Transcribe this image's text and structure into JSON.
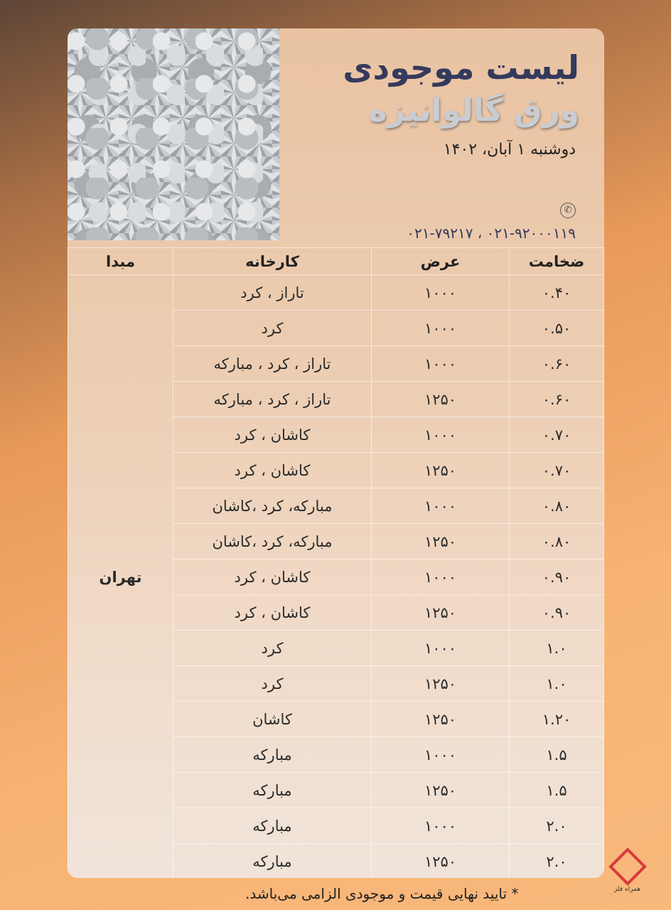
{
  "header": {
    "title": "لیست موجودی",
    "subtitle": "ورق گالوانیزه",
    "date": "دوشنبه ۱ آبان، ۱۴۰۲",
    "phones": "۰۲۱-۹۲۰۰۰۱۱۹ ، ۰۲۱-۷۹۲۱۷",
    "phone_icon": "phone-icon"
  },
  "table": {
    "headers": {
      "thickness": "ضخامت",
      "width": "عرض",
      "factory": "کارخانه",
      "origin": "مبدا"
    },
    "origin": "تهران",
    "rows": [
      {
        "thickness": "۰.۴۰",
        "width": "۱۰۰۰",
        "factory": "تاراز ، کرد"
      },
      {
        "thickness": "۰.۵۰",
        "width": "۱۰۰۰",
        "factory": "کرد"
      },
      {
        "thickness": "۰.۶۰",
        "width": "۱۰۰۰",
        "factory": "تاراز ، کرد ، مبارکه"
      },
      {
        "thickness": "۰.۶۰",
        "width": "۱۲۵۰",
        "factory": "تاراز ، کرد ، مبارکه"
      },
      {
        "thickness": "۰.۷۰",
        "width": "۱۰۰۰",
        "factory": "کاشان ، کرد"
      },
      {
        "thickness": "۰.۷۰",
        "width": "۱۲۵۰",
        "factory": "کاشان ، کرد"
      },
      {
        "thickness": "۰.۸۰",
        "width": "۱۰۰۰",
        "factory": "مبارکه، کرد ،کاشان"
      },
      {
        "thickness": "۰.۸۰",
        "width": "۱۲۵۰",
        "factory": "مبارکه، کرد ،کاشان"
      },
      {
        "thickness": "۰.۹۰",
        "width": "۱۰۰۰",
        "factory": "کاشان ، کرد"
      },
      {
        "thickness": "۰.۹۰",
        "width": "۱۲۵۰",
        "factory": "کاشان ، کرد"
      },
      {
        "thickness": "۱.۰",
        "width": "۱۰۰۰",
        "factory": "کرد"
      },
      {
        "thickness": "۱.۰",
        "width": "۱۲۵۰",
        "factory": "کرد"
      },
      {
        "thickness": "۱.۲۰",
        "width": "۱۲۵۰",
        "factory": "کاشان"
      },
      {
        "thickness": "۱.۵",
        "width": "۱۰۰۰",
        "factory": "مبارکه"
      },
      {
        "thickness": "۱.۵",
        "width": "۱۲۵۰",
        "factory": "مبارکه"
      },
      {
        "thickness": "۲.۰",
        "width": "۱۰۰۰",
        "factory": "مبارکه"
      },
      {
        "thickness": "۲.۰",
        "width": "۱۲۵۰",
        "factory": "مبارکه"
      }
    ]
  },
  "footer": {
    "note": "* تایید نهایی قیمت و موجودی الزامی می‌باشد.",
    "logo_text": "همراه فلز",
    "brand_color": "#d9383d"
  }
}
